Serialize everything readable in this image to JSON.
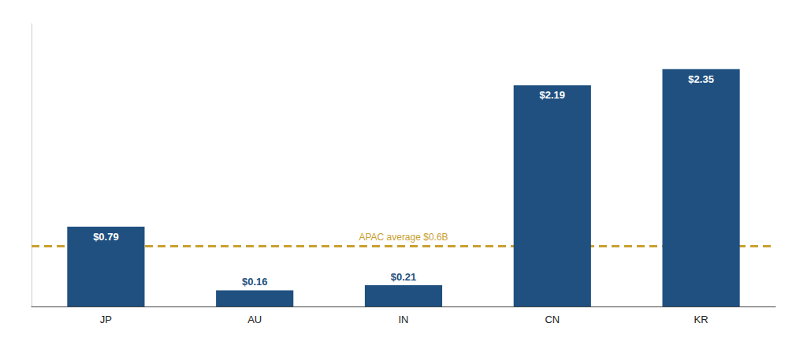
{
  "chart_data": {
    "type": "bar",
    "categories": [
      "JP",
      "AU",
      "IN",
      "CN",
      "KR"
    ],
    "values": [
      0.79,
      0.16,
      0.21,
      2.19,
      2.35
    ],
    "value_labels": [
      "$0.79",
      "$0.16",
      "$0.21",
      "$2.19",
      "$2.35"
    ],
    "data_labels": true,
    "color": "#1F5080",
    "ylim": [
      0,
      2.8
    ],
    "grid": false,
    "tick_labels": "x",
    "average": {
      "value": 0.6,
      "label": "APAC average $0.6B",
      "color": "#C9A030"
    }
  }
}
